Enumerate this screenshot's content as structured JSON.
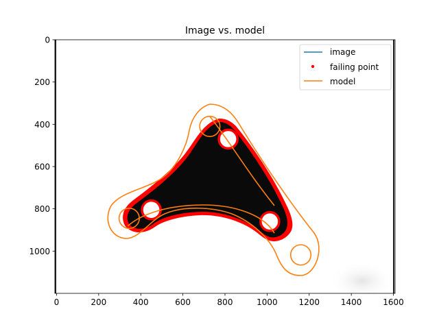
{
  "chart_data": {
    "type": "image",
    "title": "Image vs. model",
    "xlim": [
      -8,
      1608
    ],
    "ylim_inverted": [
      1200,
      0
    ],
    "xticks": [
      0,
      200,
      400,
      600,
      800,
      1000,
      1200,
      1400,
      1600
    ],
    "yticks": [
      0,
      200,
      400,
      600,
      800,
      1000
    ],
    "legend_position": "upper right",
    "legend": [
      {
        "label": "image",
        "kind": "line",
        "color": "#1f77b4"
      },
      {
        "label": "failing point",
        "kind": "marker",
        "color": "#ff0000"
      },
      {
        "label": "model",
        "kind": "line",
        "color": "#ff7f0e"
      }
    ],
    "colors": {
      "image_shape": "#0a0a0a",
      "failing_points": "#ff0000",
      "model": "#ff7f0e",
      "image": "#1f77b4"
    },
    "image_holes": [
      {
        "x": 815,
        "y": 470,
        "r": 44
      },
      {
        "x": 450,
        "y": 805,
        "r": 44
      },
      {
        "x": 1013,
        "y": 860,
        "r": 44
      }
    ],
    "model_holes": [
      {
        "x": 728,
        "y": 410,
        "r": 48
      },
      {
        "x": 345,
        "y": 845,
        "r": 48
      },
      {
        "x": 1160,
        "y": 1018,
        "r": 48
      }
    ]
  }
}
